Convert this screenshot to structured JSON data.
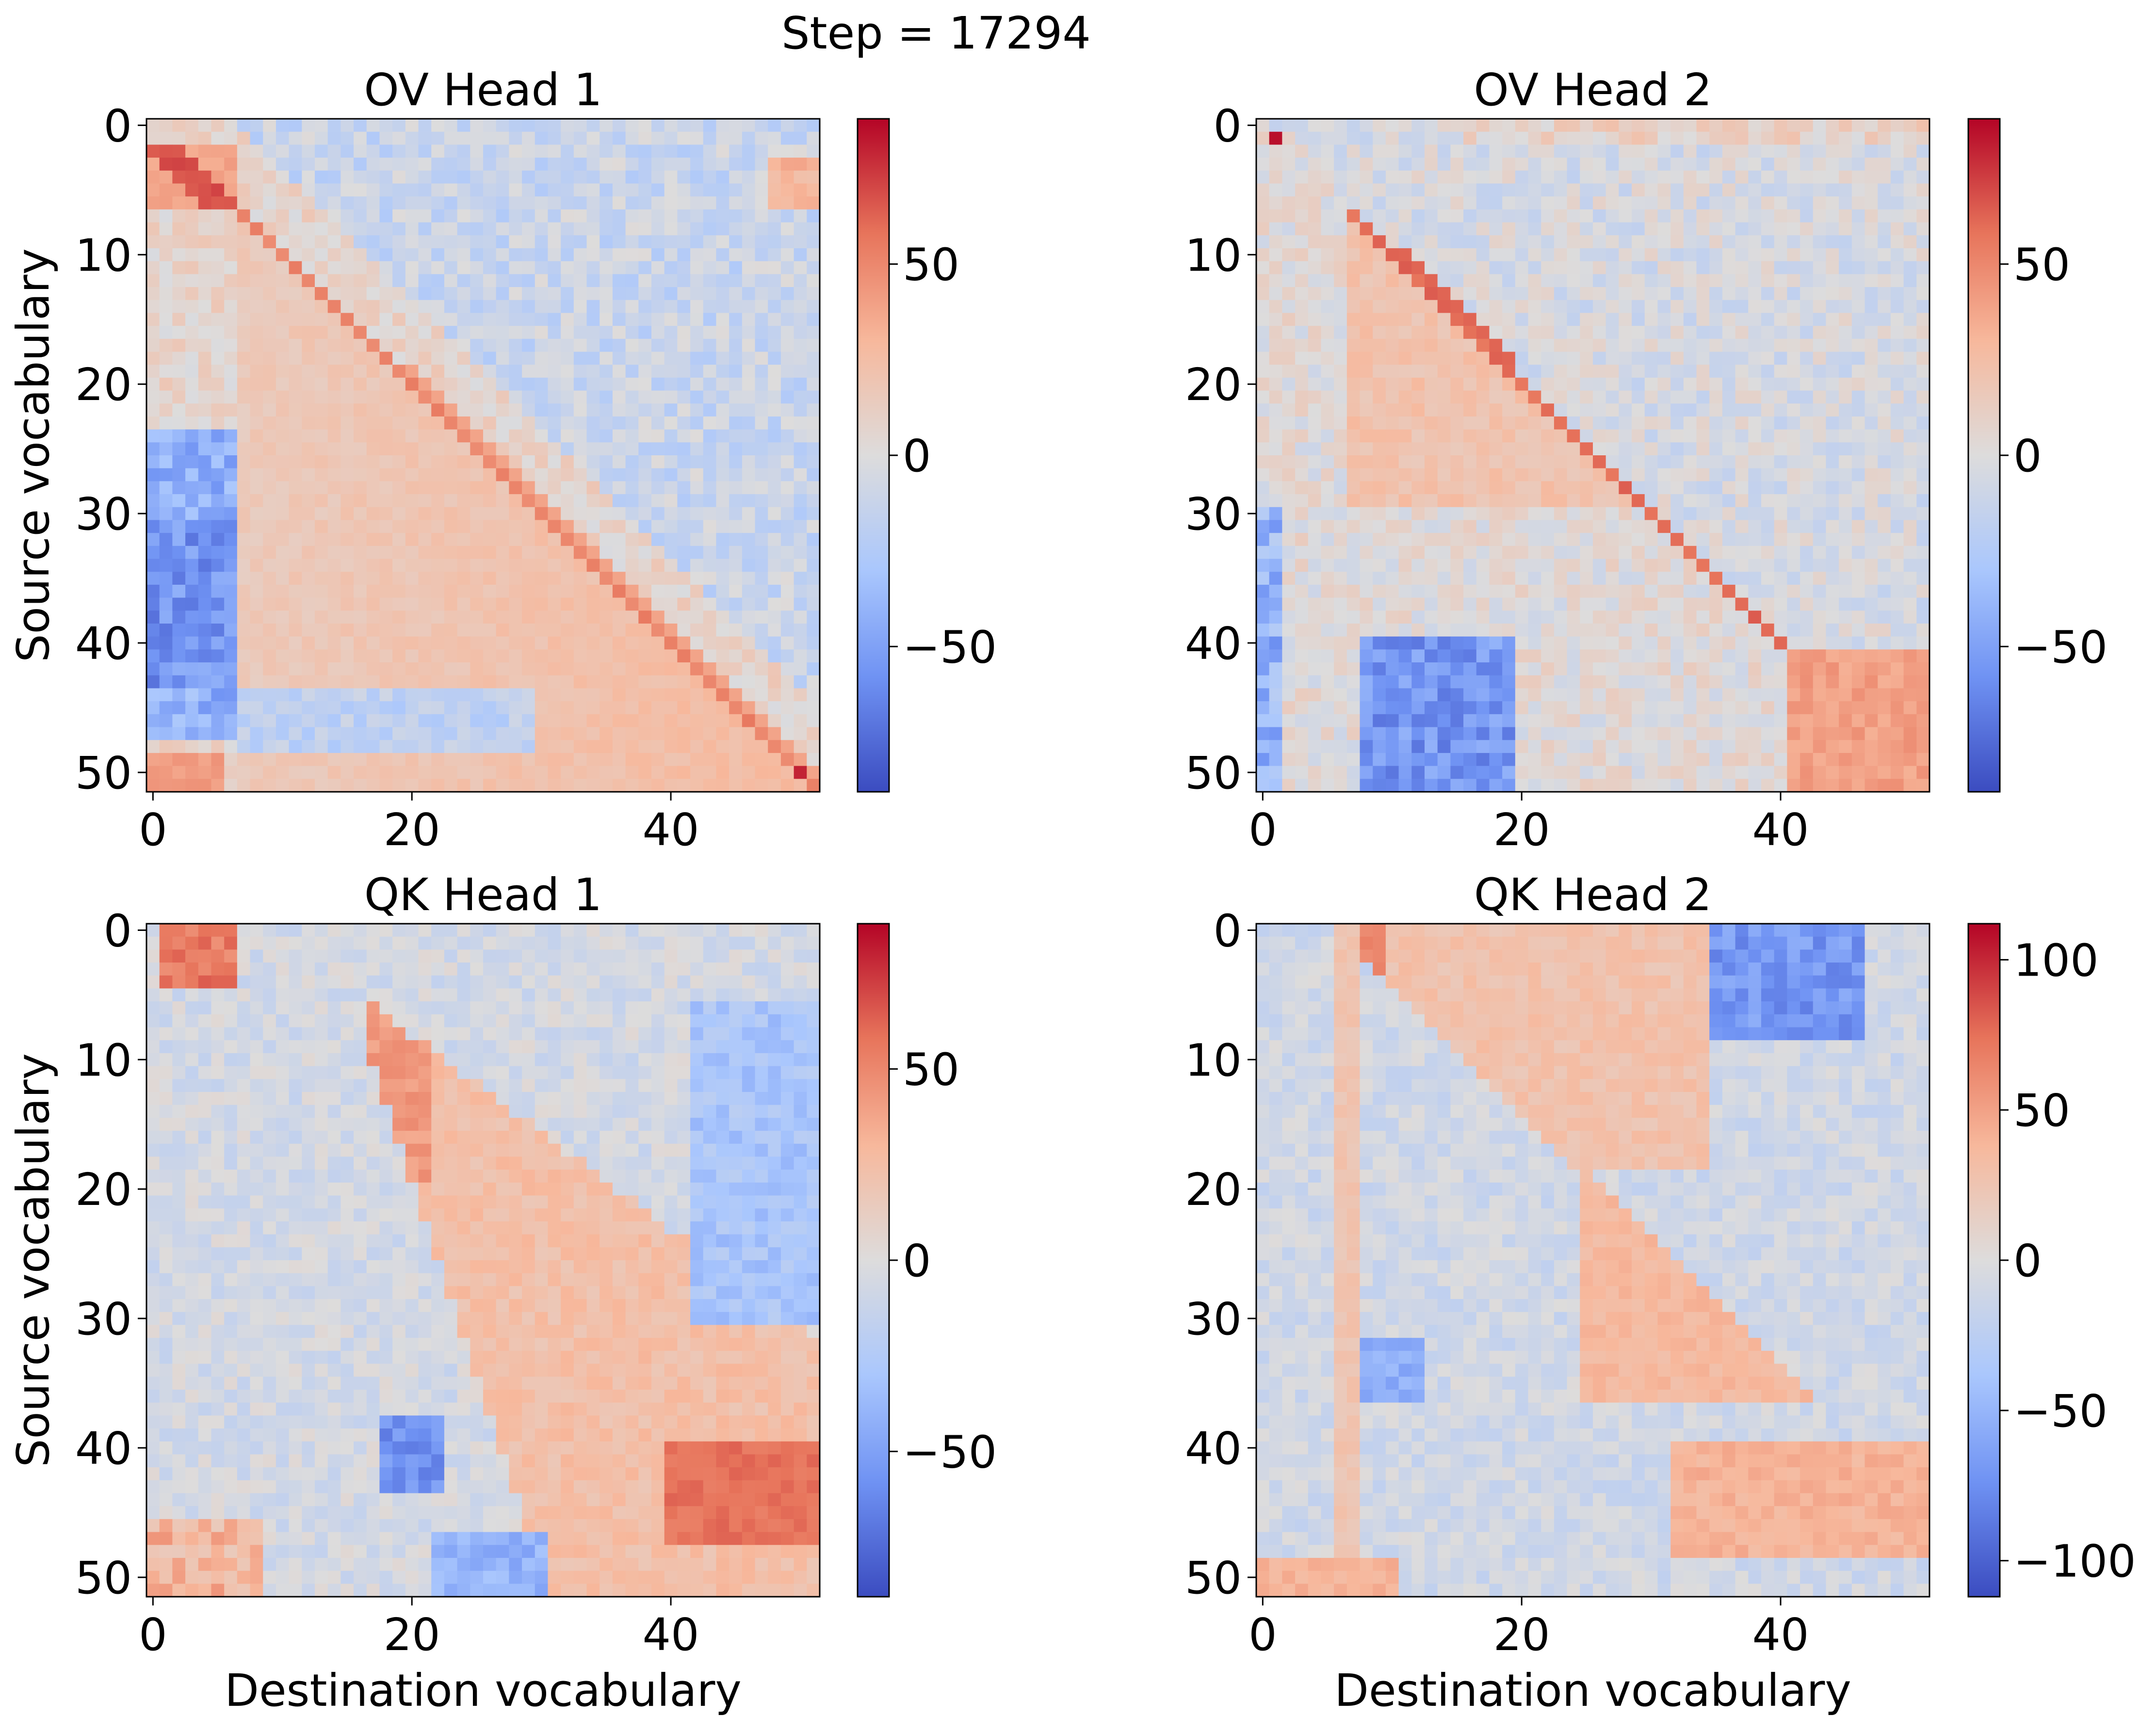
{
  "figure": {
    "suptitle": "Step = 17294"
  },
  "chart_data": [
    {
      "type": "heatmap",
      "title": "OV Head 1",
      "xlabel": "",
      "ylabel": "Source vocabulary",
      "shape": [
        52,
        52
      ],
      "xticks": [
        "0",
        "20",
        "40"
      ],
      "yticks": [
        "0",
        "10",
        "20",
        "30",
        "40",
        "50"
      ],
      "colorbar": {
        "min": -88,
        "max": 88,
        "ticks": [
          "50",
          "0",
          "−50"
        ]
      },
      "colormap": "coolwarm",
      "colormap_stops": [
        "#3b4cc0",
        "#6f92f3",
        "#aac7fd",
        "#dddcdc",
        "#f7b89c",
        "#e7745b",
        "#b40426"
      ],
      "pattern": "diagonal band with strong top-left block, blue left stripe rows 28-45"
    },
    {
      "type": "heatmap",
      "title": "OV Head 2",
      "xlabel": "",
      "ylabel": "",
      "shape": [
        52,
        52
      ],
      "xticks": [
        "0",
        "20",
        "40"
      ],
      "yticks": [
        "0",
        "10",
        "20",
        "30",
        "40",
        "50"
      ],
      "colorbar": {
        "min": -88,
        "max": 88,
        "ticks": [
          "50",
          "0",
          "−50"
        ]
      },
      "colormap": "coolwarm",
      "pattern": "diagonal line, red block bottom-right, blue block bottom x 8-20"
    },
    {
      "type": "heatmap",
      "title": "QK Head 1",
      "xlabel": "Destination vocabulary",
      "ylabel": "Source vocabulary",
      "shape": [
        52,
        52
      ],
      "xticks": [
        "0",
        "20",
        "40"
      ],
      "yticks": [
        "0",
        "10",
        "20",
        "30",
        "40",
        "50"
      ],
      "colorbar": {
        "min": -88,
        "max": 88,
        "ticks": [
          "50",
          "0",
          "−50"
        ]
      },
      "colormap": "coolwarm",
      "pattern": "red wedge below diagonal from x=18, red bottom-right corner, blue spots"
    },
    {
      "type": "heatmap",
      "title": "QK Head 2",
      "xlabel": "Destination vocabulary",
      "ylabel": "",
      "shape": [
        52,
        52
      ],
      "xticks": [
        "0",
        "20",
        "40"
      ],
      "yticks": [
        "0",
        "10",
        "20",
        "30",
        "40",
        "50"
      ],
      "colorbar": {
        "min": -112,
        "max": 112,
        "ticks": [
          "100",
          "50",
          "0",
          "−50",
          "−100"
        ]
      },
      "colormap": "coolwarm",
      "pattern": "red wedge from x=7 top and x=25 mid, blue block top-right x 35-45"
    }
  ]
}
